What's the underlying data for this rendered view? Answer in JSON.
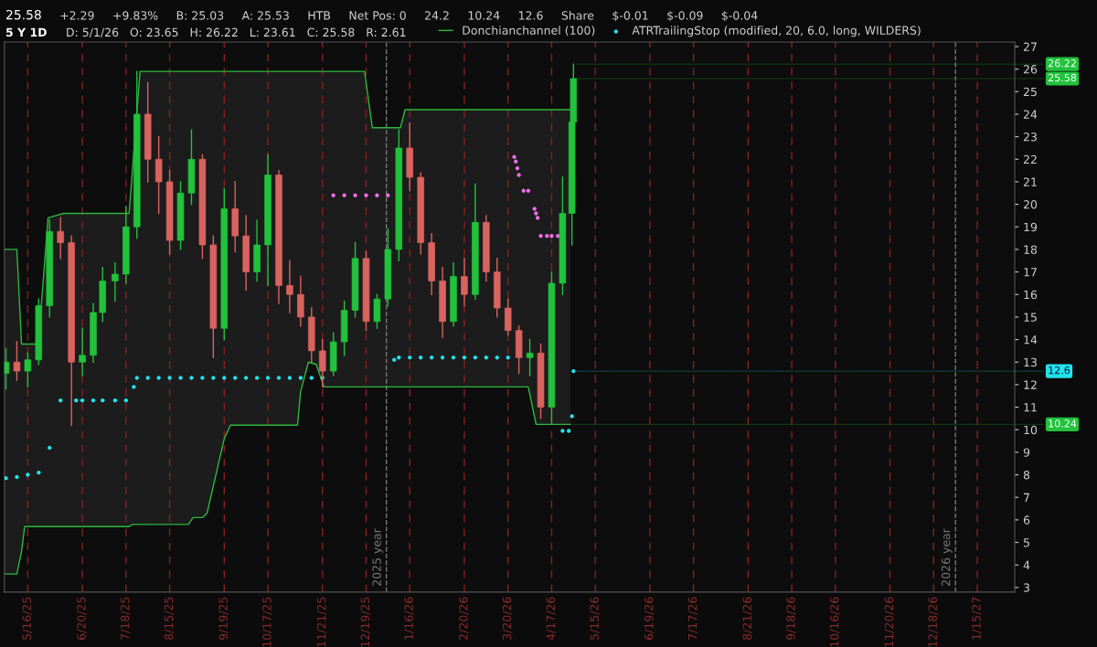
{
  "chart_data": {
    "type": "candlestick",
    "title": "5 Y 1D",
    "subtitle": "D: 5/1/26   O: 23.65   H: 26.22   L: 23.61   C: 25.58   R: 2.61",
    "x": [
      "2025-05-02",
      "2025-05-09",
      "2025-05-16",
      "2025-05-23",
      "2025-05-30",
      "2025-06-06",
      "2025-06-13",
      "2025-06-20",
      "2025-06-27",
      "2025-07-03",
      "2025-07-11",
      "2025-07-18",
      "2025-07-25",
      "2025-08-01",
      "2025-08-08",
      "2025-08-15",
      "2025-08-22",
      "2025-08-29",
      "2025-09-05",
      "2025-09-12",
      "2025-09-19",
      "2025-09-26",
      "2025-10-03",
      "2025-10-10",
      "2025-10-17",
      "2025-10-24",
      "2025-10-31",
      "2025-11-07",
      "2025-11-14",
      "2025-11-21",
      "2025-11-28",
      "2025-12-05",
      "2025-12-12",
      "2025-12-19",
      "2025-12-26",
      "2026-01-02",
      "2026-01-09",
      "2026-01-16",
      "2026-01-23",
      "2026-01-30",
      "2026-02-06",
      "2026-02-13",
      "2026-02-20",
      "2026-02-27",
      "2026-03-06",
      "2026-03-13",
      "2026-03-20",
      "2026-03-27",
      "2026-04-03",
      "2026-04-10",
      "2026-04-17",
      "2026-04-24",
      "2026-04-30",
      "2026-05-01"
    ],
    "ohlc": [
      [
        12.5,
        13.6,
        11.8,
        13.0
      ],
      [
        13.0,
        13.9,
        12.2,
        12.6
      ],
      [
        12.6,
        13.4,
        11.9,
        13.1
      ],
      [
        13.1,
        15.8,
        12.9,
        15.5
      ],
      [
        15.5,
        19.3,
        15.0,
        18.8
      ],
      [
        18.8,
        19.4,
        17.6,
        18.3
      ],
      [
        18.3,
        18.6,
        10.2,
        13.0
      ],
      [
        13.0,
        14.5,
        12.4,
        13.3
      ],
      [
        13.3,
        15.6,
        13.0,
        15.2
      ],
      [
        15.2,
        17.2,
        14.8,
        16.6
      ],
      [
        16.6,
        17.4,
        15.7,
        16.9
      ],
      [
        16.9,
        19.9,
        16.5,
        19.0
      ],
      [
        19.0,
        25.9,
        18.5,
        24.0
      ],
      [
        24.0,
        25.4,
        21.0,
        22.0
      ],
      [
        22.0,
        23.0,
        19.6,
        21.0
      ],
      [
        21.0,
        21.5,
        17.8,
        18.4
      ],
      [
        18.4,
        21.0,
        18.0,
        20.5
      ],
      [
        20.5,
        23.3,
        20.0,
        22.0
      ],
      [
        22.0,
        22.2,
        17.6,
        18.2
      ],
      [
        18.2,
        18.6,
        13.2,
        14.5
      ],
      [
        14.5,
        20.7,
        14.0,
        19.8
      ],
      [
        19.8,
        21.0,
        17.9,
        18.6
      ],
      [
        18.6,
        19.5,
        16.2,
        17.0
      ],
      [
        17.0,
        19.3,
        16.6,
        18.2
      ],
      [
        18.2,
        22.2,
        16.4,
        21.3
      ],
      [
        21.3,
        21.5,
        15.6,
        16.4
      ],
      [
        16.4,
        17.5,
        15.2,
        16.0
      ],
      [
        16.0,
        16.8,
        14.6,
        15.0
      ],
      [
        15.0,
        15.4,
        13.0,
        13.5
      ],
      [
        13.5,
        14.0,
        11.9,
        12.6
      ],
      [
        12.6,
        14.3,
        12.4,
        13.9
      ],
      [
        13.9,
        15.7,
        13.3,
        15.3
      ],
      [
        15.3,
        18.3,
        15.0,
        17.6
      ],
      [
        17.6,
        17.9,
        14.4,
        14.8
      ],
      [
        14.8,
        16.0,
        14.5,
        15.8
      ],
      [
        15.8,
        18.9,
        15.5,
        18.0
      ],
      [
        18.0,
        23.3,
        17.5,
        22.5
      ],
      [
        22.5,
        23.6,
        20.6,
        21.2
      ],
      [
        21.2,
        21.4,
        17.8,
        18.3
      ],
      [
        18.3,
        18.7,
        16.0,
        16.6
      ],
      [
        16.6,
        17.2,
        14.1,
        14.8
      ],
      [
        14.8,
        17.4,
        14.6,
        16.8
      ],
      [
        16.8,
        17.6,
        15.5,
        16.0
      ],
      [
        16.0,
        20.9,
        15.8,
        19.2
      ],
      [
        19.2,
        19.5,
        16.6,
        17.0
      ],
      [
        17.0,
        17.6,
        15.0,
        15.4
      ],
      [
        15.4,
        15.8,
        14.2,
        14.4
      ],
      [
        14.4,
        14.6,
        12.5,
        13.2
      ],
      [
        13.2,
        14.0,
        12.4,
        13.4
      ],
      [
        13.4,
        13.8,
        10.5,
        11.0
      ],
      [
        11.0,
        17.0,
        10.3,
        16.5
      ],
      [
        16.5,
        21.2,
        16.0,
        19.6
      ],
      [
        19.6,
        24.2,
        18.2,
        23.65
      ],
      [
        23.65,
        26.22,
        23.61,
        25.58
      ]
    ],
    "series": [
      {
        "type": "line",
        "name": "Donchianchannel (100)",
        "color": "#2db83d",
        "x": [
          "2025-05-01",
          "2025-05-09",
          "2025-05-12",
          "2025-05-14",
          "2025-05-22",
          "2025-05-25",
          "2025-05-29",
          "2025-06-08",
          "2025-07-20",
          "2025-07-22",
          "2025-07-27",
          "2025-08-27",
          "2025-08-30",
          "2025-09-05",
          "2025-09-08",
          "2025-09-19",
          "2025-09-23",
          "2025-11-05",
          "2025-11-07",
          "2025-11-12",
          "2025-11-17",
          "2025-11-22",
          "2025-12-18",
          "2025-12-23",
          "2026-01-10",
          "2026-01-13",
          "2026-04-02",
          "2026-04-07",
          "2026-04-29"
        ],
        "values": [
          18.0,
          18.0,
          13.8,
          13.8,
          13.8,
          15.8,
          19.4,
          19.6,
          19.6,
          21.4,
          25.9,
          25.9,
          25.9,
          25.9,
          25.9,
          25.9,
          25.9,
          25.9,
          25.9,
          25.9,
          25.9,
          25.9,
          25.9,
          23.4,
          23.4,
          24.2,
          24.2,
          24.2,
          24.2
        ],
        "upper": [
          18.0,
          18.0,
          13.8,
          13.8,
          13.8,
          15.8,
          19.4,
          19.6,
          19.6,
          21.4,
          25.9,
          25.9,
          25.9,
          25.9,
          25.9,
          25.9,
          25.9,
          25.9,
          25.9,
          25.9,
          25.9,
          25.9,
          25.9,
          23.4,
          23.4,
          24.2,
          24.2,
          24.2,
          24.2
        ],
        "lower": [
          3.6,
          3.6,
          4.6,
          5.7,
          5.7,
          5.7,
          5.7,
          5.7,
          5.7,
          5.8,
          5.8,
          5.8,
          6.1,
          6.1,
          6.3,
          9.6,
          10.2,
          10.2,
          11.7,
          13.0,
          12.9,
          11.9,
          11.9,
          11.9,
          11.9,
          11.9,
          11.9,
          10.24,
          10.24
        ]
      },
      {
        "type": "line",
        "color": "#2db83d",
        "x": [
          "2025-05-01",
          "2025-05-09",
          "2025-05-12",
          "2025-05-14",
          "2025-05-22",
          "2025-05-25",
          "2025-05-29",
          "2025-06-08",
          "2025-07-20",
          "2025-07-22",
          "2025-07-27",
          "2025-08-27",
          "2025-08-30",
          "2025-09-05",
          "2025-09-08",
          "2025-09-19",
          "2025-09-23",
          "2025-11-05",
          "2025-11-07",
          "2025-11-12",
          "2025-11-17",
          "2025-11-22",
          "2025-12-18",
          "2025-12-23",
          "2026-01-10",
          "2026-01-13",
          "2026-04-02",
          "2026-04-07",
          "2026-04-29"
        ],
        "values": [
          3.6,
          3.6,
          4.6,
          5.7,
          5.7,
          5.7,
          5.7,
          5.7,
          5.7,
          5.8,
          5.8,
          5.8,
          6.1,
          6.1,
          6.3,
          9.6,
          10.2,
          10.2,
          11.7,
          13.0,
          12.9,
          11.9,
          11.9,
          11.9,
          11.9,
          11.9,
          11.9,
          10.24,
          10.24
        ],
        "value_labels": [
          null,
          null,
          null,
          null,
          null,
          null,
          null,
          null,
          null,
          null,
          null,
          null,
          null,
          null,
          null,
          null,
          null,
          null,
          null,
          null,
          null,
          null,
          null,
          null,
          null,
          null,
          null,
          null,
          "10.24"
        ]
      },
      {
        "type": "scatter",
        "name": "ATRTrailingStop (modified, 20, 6.0, long, WILDERS)",
        "color": "#21e3ec",
        "x": [
          "2025-05-02",
          "2025-05-09",
          "2025-05-16",
          "2025-05-23",
          "2025-05-30",
          "2025-06-06",
          "2025-06-16",
          "2025-06-20",
          "2025-06-27",
          "2025-07-03",
          "2025-07-11",
          "2025-07-18",
          "2025-07-23",
          "2025-07-25",
          "2025-08-01",
          "2025-08-08",
          "2025-08-15",
          "2025-08-22",
          "2025-08-29",
          "2025-09-05",
          "2025-09-12",
          "2025-09-19",
          "2025-09-26",
          "2025-10-03",
          "2025-10-10",
          "2025-10-17",
          "2025-10-24",
          "2025-10-31",
          "2025-11-07",
          "2025-11-14",
          "2025-11-21",
          "2026-01-06",
          "2026-01-09",
          "2026-01-16",
          "2026-01-23",
          "2026-01-30",
          "2026-02-06",
          "2026-02-13",
          "2026-02-20",
          "2026-02-27",
          "2026-03-06",
          "2026-03-13",
          "2026-03-20",
          "2026-04-24",
          "2026-04-28",
          "2026-04-30",
          "2026-05-01"
        ],
        "values": [
          7.85,
          7.9,
          8.0,
          8.1,
          9.2,
          11.3,
          11.3,
          11.3,
          11.3,
          11.3,
          11.3,
          11.3,
          11.9,
          12.3,
          12.3,
          12.3,
          12.3,
          12.3,
          12.3,
          12.3,
          12.3,
          12.3,
          12.3,
          12.3,
          12.3,
          12.3,
          12.3,
          12.3,
          12.3,
          12.3,
          12.3,
          13.1,
          13.2,
          13.2,
          13.2,
          13.2,
          13.2,
          13.2,
          13.2,
          13.2,
          13.2,
          13.2,
          13.2,
          9.95,
          9.95,
          10.6,
          12.6
        ],
        "value_labels": [
          null,
          null,
          null,
          null,
          null,
          null,
          null,
          null,
          null,
          null,
          null,
          null,
          null,
          null,
          null,
          null,
          null,
          null,
          null,
          null,
          null,
          null,
          null,
          null,
          null,
          null,
          null,
          null,
          null,
          null,
          null,
          null,
          null,
          null,
          null,
          null,
          null,
          null,
          null,
          null,
          null,
          null,
          null,
          null,
          null,
          null,
          "12.6"
        ]
      },
      {
        "type": "scatter",
        "color": "#ee6ee8",
        "x": [
          "2025-11-28",
          "2025-12-05",
          "2025-12-12",
          "2025-12-19",
          "2025-12-26",
          "2026-01-02",
          "2026-03-24",
          "2026-03-25",
          "2026-03-26",
          "2026-03-27",
          "2026-03-30",
          "2026-04-02",
          "2026-04-06",
          "2026-04-07",
          "2026-04-08",
          "2026-04-10",
          "2026-04-14",
          "2026-04-17",
          "2026-04-21"
        ],
        "values": [
          20.4,
          20.4,
          20.4,
          20.4,
          20.4,
          20.4,
          22.1,
          21.9,
          21.6,
          21.3,
          20.6,
          20.6,
          19.8,
          19.6,
          19.4,
          18.6,
          18.6,
          18.6,
          18.6
        ]
      }
    ],
    "xlim": [
      "2025-05-01",
      "2027-02-08"
    ],
    "xticks": [
      {
        "value": "2025-05-16",
        "label": "5/16/25"
      },
      {
        "value": "2025-06-20",
        "label": "6/20/25"
      },
      {
        "value": "2025-07-18",
        "label": "7/18/25"
      },
      {
        "value": "2025-08-15",
        "label": "8/15/25"
      },
      {
        "value": "2025-09-19",
        "label": "9/19/25"
      },
      {
        "value": "2025-10-17",
        "label": "10/17/25"
      },
      {
        "value": "2025-11-21",
        "label": "11/21/25"
      },
      {
        "value": "2025-12-19",
        "label": "12/19/25"
      },
      {
        "value": "2026-01-16",
        "label": "1/16/26"
      },
      {
        "value": "2026-02-20",
        "label": "2/20/26"
      },
      {
        "value": "2026-03-20",
        "label": "3/20/26"
      },
      {
        "value": "2026-04-17",
        "label": "4/17/26"
      },
      {
        "value": "2026-05-15",
        "label": "5/15/26"
      },
      {
        "value": "2026-06-19",
        "label": "6/19/26"
      },
      {
        "value": "2026-07-17",
        "label": "7/17/26"
      },
      {
        "value": "2026-08-21",
        "label": "8/21/26"
      },
      {
        "value": "2026-09-18",
        "label": "9/18/26"
      },
      {
        "value": "2026-10-16",
        "label": "10/16/26"
      },
      {
        "value": "2026-11-20",
        "label": "11/20/26"
      },
      {
        "value": "2026-12-18",
        "label": "12/18/26"
      },
      {
        "value": "2027-01-15",
        "label": "1/15/27"
      }
    ],
    "ylim": [
      2.8,
      27.2
    ],
    "yticks": [
      3,
      4,
      5,
      6,
      7,
      8,
      9,
      10,
      11,
      12,
      13,
      14,
      15,
      16,
      17,
      18,
      19,
      20,
      21,
      22,
      23,
      24,
      25,
      26,
      27
    ],
    "grid": "x",
    "legend": "top",
    "ref_lines": [
      {
        "axis": "x",
        "value": "2026-01-01",
        "label": "2025 year",
        "color": "#777777",
        "line_style": "dashed"
      },
      {
        "axis": "x",
        "value": "2027-01-01",
        "label": "2026 year",
        "color": "#777777",
        "line_style": "dashed"
      }
    ],
    "annotations": [
      "25.58",
      "+2.29",
      "+9.83%",
      "B: 25.03",
      "A: 25.53",
      "HTB",
      "Net Pos: 0",
      "24.2",
      "10.24",
      "12.6",
      "Share",
      "$-0.01",
      "$-0.09",
      "$-0.04",
      {
        "text": "26.22",
        "x": "2026-05-01",
        "y": 26.22
      },
      {
        "text": "25.58",
        "x": "2026-05-01",
        "y": 25.58
      }
    ]
  }
}
